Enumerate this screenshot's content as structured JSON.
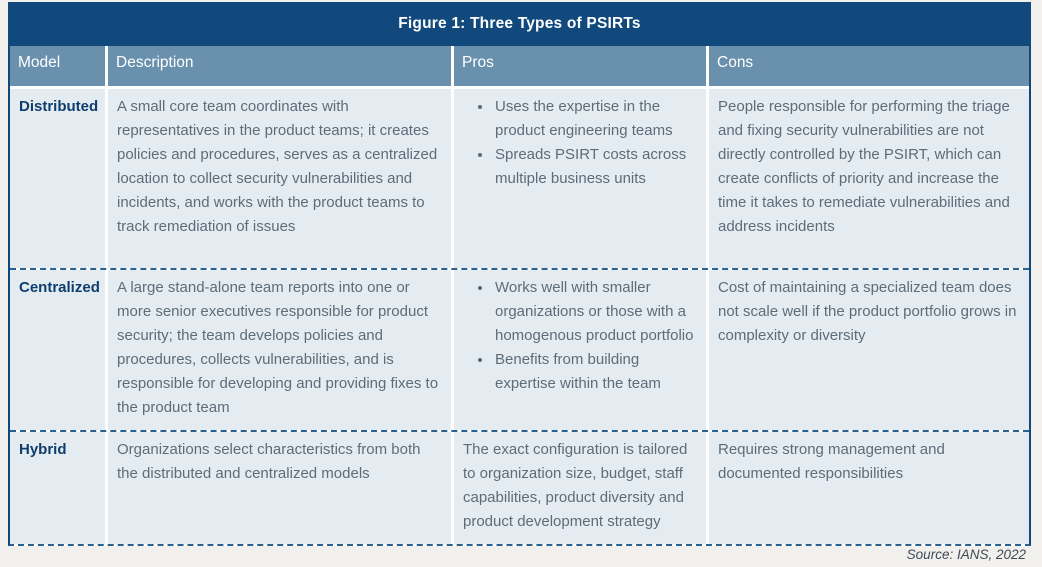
{
  "title": "Figure 1: Three Types of PSIRTs",
  "source": "Source: IANS, 2022",
  "colors": {
    "title_bar_bg": "#11497c",
    "header_bg": "#6990ad",
    "cell_bg": "#e5ecf1",
    "model_text": "#0e3e6d",
    "body_text": "#5d6c79",
    "dashed_border": "#2a618f",
    "page_bg": "#f1f0ed"
  },
  "table": {
    "headers": [
      "Model",
      "Description",
      "Pros",
      "Cons"
    ],
    "rows": [
      {
        "model": "Distributed",
        "description": "A small core team coordinates with representatives in the product teams; it creates policies and procedures, serves as a centralized location to collect security vulnerabilities and incidents, and works with the product teams to track remediation of issues",
        "pros": [
          "Uses the expertise in the product engineering teams",
          "Spreads PSIRT costs across multiple business units"
        ],
        "cons": "People responsible for performing the triage and fixing security vulnerabilities are not directly controlled by the PSIRT, which can create conflicts of priority and increase the time it takes to remediate vulnerabilities and address incidents"
      },
      {
        "model": "Centralized",
        "description": "A large stand-alone team reports into one or more senior executives responsible for product security; the team develops policies and procedures, collects vulnerabilities, and is responsible for developing and providing fixes to the product team",
        "pros": [
          "Works well with smaller organizations or those with a homogenous product portfolio",
          "Benefits from building expertise within the team"
        ],
        "cons": "Cost of maintaining a specialized team does not scale well if the product portfolio grows in complexity or diversity"
      },
      {
        "model": "Hybrid",
        "description": "Organizations select characteristics from both the distributed and centralized models",
        "pros_text": "The exact configuration is tailored to organization size, budget, staff capabilities, product diversity and product development strategy",
        "cons": "Requires strong management and documented responsibilities"
      }
    ]
  }
}
